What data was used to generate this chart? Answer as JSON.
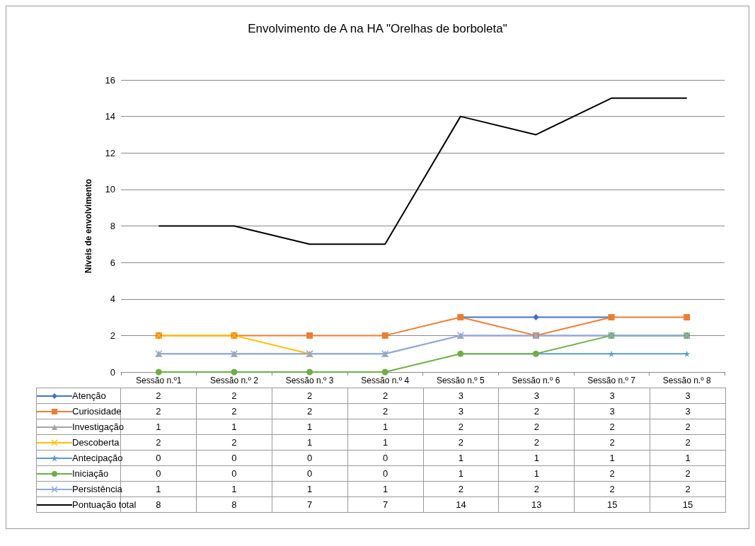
{
  "chart_data": {
    "type": "line",
    "title": "Envolvimento de A na HA \"Orelhas de borboleta\"",
    "ylabel": "Níveis de envolvimento",
    "categories": [
      "Sessão n.º1",
      "Sessão n.º 2",
      "Sessão n.º 3",
      "Sessão n.º 4",
      "Sessão n.º 5",
      "Sessão n.º 6",
      "Sessão n.º 7",
      "Sessão n.º 8"
    ],
    "series": [
      {
        "name": "Atenção",
        "color": "#4472c4",
        "marker": "diamond",
        "values": [
          null,
          null,
          null,
          null,
          3,
          3,
          3,
          null
        ],
        "value_labels": [
          "2",
          "2",
          "2",
          "2",
          "3",
          "3",
          "3",
          "3"
        ]
      },
      {
        "name": "Curiosidade",
        "color": "#ed7d31",
        "marker": "square",
        "values": [
          2,
          2,
          2,
          2,
          3,
          2,
          3,
          3
        ],
        "value_labels": [
          "2",
          "2",
          "2",
          "2",
          "3",
          "2",
          "3",
          "3"
        ]
      },
      {
        "name": "Investigação",
        "color": "#a5a5a5",
        "marker": "triangle",
        "values": [
          1,
          1,
          1,
          1,
          2,
          2,
          2,
          2
        ],
        "value_labels": [
          "1",
          "1",
          "1",
          "1",
          "2",
          "2",
          "2",
          "2"
        ]
      },
      {
        "name": "Descoberta",
        "color": "#ffc000",
        "marker": "cross",
        "values": [
          2,
          2,
          1,
          null,
          null,
          null,
          null,
          null
        ],
        "value_labels": [
          "2",
          "2",
          "1",
          "1",
          "2",
          "2",
          "2",
          "2"
        ]
      },
      {
        "name": "Antecipação",
        "color": "#5b9bd5",
        "marker": "star",
        "values": [
          null,
          null,
          null,
          null,
          1,
          1,
          1,
          1
        ],
        "value_labels": [
          "0",
          "0",
          "0",
          "0",
          "1",
          "1",
          "1",
          "1"
        ]
      },
      {
        "name": "Iniciação",
        "color": "#70ad47",
        "marker": "circle",
        "values": [
          0,
          0,
          0,
          0,
          1,
          1,
          2,
          2
        ],
        "value_labels": [
          "0",
          "0",
          "0",
          "0",
          "1",
          "1",
          "2",
          "2"
        ]
      },
      {
        "name": "Persistência",
        "color": "#8faadc",
        "marker": "cross",
        "values": [
          1,
          1,
          1,
          1,
          2,
          2,
          2,
          2
        ],
        "value_labels": [
          "1",
          "1",
          "1",
          "1",
          "2",
          "2",
          "2",
          "2"
        ]
      },
      {
        "name": "Pontuação total",
        "color": "#000000",
        "marker": "none",
        "values": [
          8,
          8,
          7,
          7,
          14,
          13,
          15,
          15
        ],
        "value_labels": [
          "8",
          "8",
          "7",
          "7",
          "14",
          "13",
          "15",
          "15"
        ]
      }
    ],
    "ylim": [
      0,
      16
    ],
    "yticks": [
      0,
      2,
      4,
      6,
      8,
      10,
      12,
      14,
      16
    ],
    "grid": "y",
    "legend": "bottom"
  }
}
